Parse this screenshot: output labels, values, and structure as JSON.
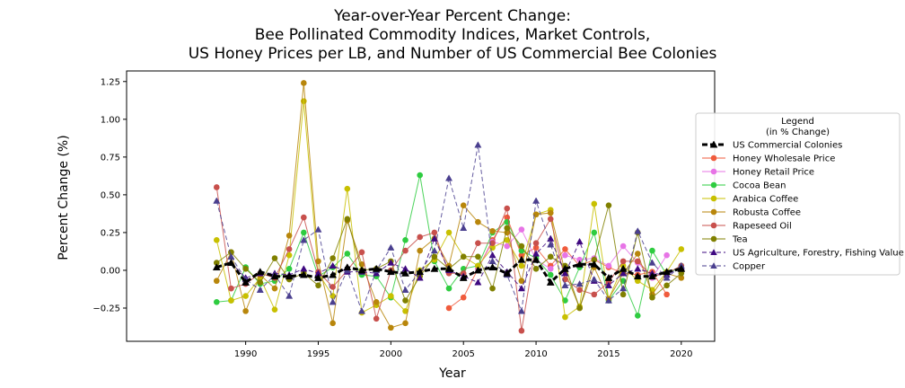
{
  "chart_data": {
    "type": "line",
    "title": [
      "Year-over-Year Percent Change:",
      "Bee Pollinated Commodity Indices, Market Controls,",
      "US Honey Prices per LB, and Number of US Commercial Bee Colonies"
    ],
    "xlabel": "Year",
    "ylabel": "Percent Change (%)",
    "xlim": [
      1981.8,
      2022.3
    ],
    "ylim": [
      -0.47,
      1.32
    ],
    "xticks": [
      1990,
      1995,
      2000,
      2005,
      2010,
      2015,
      2020
    ],
    "yticks": [
      -0.25,
      0.0,
      0.25,
      0.5,
      0.75,
      1.0,
      1.25
    ],
    "ytick_labels": [
      "−0.25",
      "0.00",
      "0.25",
      "0.50",
      "0.75",
      "1.00",
      "1.25"
    ],
    "legend": {
      "title_lines": [
        "Legend",
        "(in % Change)"
      ],
      "placement": "right-outside"
    },
    "x": [
      1988,
      1989,
      1990,
      1991,
      1992,
      1993,
      1994,
      1995,
      1996,
      1997,
      1998,
      1999,
      2000,
      2001,
      2002,
      2003,
      2004,
      2005,
      2006,
      2007,
      2008,
      2009,
      2010,
      2011,
      2012,
      2013,
      2014,
      2015,
      2016,
      2017,
      2018,
      2019,
      2020
    ],
    "series": [
      {
        "name": "US Commercial Colonies",
        "color": "#000000",
        "dash": "6,3",
        "width": 3,
        "marker": "triangle",
        "values": [
          0.02,
          0.05,
          -0.08,
          -0.01,
          -0.04,
          -0.04,
          -0.03,
          -0.05,
          -0.03,
          0.02,
          0.0,
          0.01,
          -0.01,
          -0.02,
          -0.01,
          0.01,
          0.01,
          -0.05,
          0.0,
          0.02,
          -0.02,
          0.07,
          0.07,
          -0.08,
          0.01,
          0.04,
          0.04,
          -0.05,
          0.01,
          -0.04,
          -0.04,
          -0.01,
          0.01
        ]
      },
      {
        "name": "Honey Wholesale Price",
        "color": "#f05b3c",
        "dash": "",
        "width": 1,
        "marker": "circle",
        "values": [
          null,
          null,
          null,
          null,
          null,
          null,
          null,
          null,
          null,
          null,
          null,
          null,
          null,
          null,
          null,
          null,
          -0.25,
          -0.18,
          0.01,
          0.2,
          0.35,
          0.1,
          0.15,
          0.03,
          0.14,
          0.03,
          0.07,
          0.02,
          -0.02,
          -0.03,
          -0.01,
          -0.16,
          null
        ]
      },
      {
        "name": "Honey Retail Price",
        "color": "#e774e6",
        "dash": "",
        "width": 1,
        "marker": "circle",
        "values": [
          null,
          null,
          null,
          null,
          null,
          null,
          null,
          null,
          null,
          null,
          null,
          null,
          null,
          null,
          null,
          null,
          null,
          null,
          0.01,
          0.19,
          0.16,
          0.27,
          0.07,
          0.01,
          0.1,
          0.07,
          0.08,
          0.03,
          0.16,
          0.05,
          -0.05,
          0.1,
          null
        ]
      },
      {
        "name": "Cocoa Bean",
        "color": "#2ecc40",
        "dash": "",
        "width": 1,
        "marker": "circle",
        "values": [
          -0.21,
          -0.2,
          0.02,
          -0.09,
          -0.07,
          0.01,
          0.25,
          -0.04,
          0.02,
          0.11,
          -0.03,
          -0.04,
          -0.18,
          0.2,
          0.63,
          0.06,
          -0.12,
          0.01,
          0.03,
          0.25,
          0.32,
          0.13,
          0.08,
          -0.03,
          -0.2,
          0.02,
          0.25,
          -0.2,
          -0.07,
          -0.3,
          0.13,
          -0.03,
          0.03
        ]
      },
      {
        "name": "Arabica Coffee",
        "color": "#c8c000",
        "dash": "",
        "width": 1,
        "marker": "circle",
        "values": [
          0.2,
          -0.2,
          -0.17,
          -0.05,
          -0.26,
          0.1,
          1.12,
          -0.02,
          -0.17,
          0.54,
          -0.28,
          -0.23,
          -0.17,
          -0.27,
          0.0,
          0.07,
          0.25,
          0.09,
          0.03,
          0.15,
          0.2,
          0.03,
          0.37,
          0.4,
          -0.31,
          -0.24,
          0.44,
          -0.19,
          0.03,
          -0.07,
          -0.13,
          -0.01,
          0.14
        ]
      },
      {
        "name": "Robusta Coffee",
        "color": "#b8860b",
        "dash": "",
        "width": 1,
        "marker": "circle",
        "values": [
          -0.07,
          0.12,
          -0.27,
          -0.03,
          -0.12,
          0.23,
          1.24,
          0.06,
          -0.35,
          0.33,
          0.04,
          -0.21,
          -0.38,
          -0.35,
          0.13,
          0.21,
          0.03,
          0.43,
          0.32,
          0.26,
          0.25,
          -0.07,
          0.37,
          0.38,
          -0.01,
          -0.25,
          0.02,
          -0.19,
          -0.02,
          0.11,
          -0.16,
          -0.02,
          -0.05
        ]
      },
      {
        "name": "Rapeseed Oil",
        "color": "#c8504c",
        "dash": "",
        "width": 1,
        "marker": "circle",
        "values": [
          0.55,
          -0.12,
          -0.09,
          -0.02,
          -0.05,
          0.14,
          0.35,
          -0.01,
          -0.11,
          0.0,
          0.12,
          -0.32,
          0.0,
          0.13,
          0.22,
          0.25,
          -0.02,
          -0.02,
          0.18,
          0.18,
          0.41,
          -0.4,
          0.18,
          0.34,
          -0.06,
          -0.13,
          -0.16,
          -0.08,
          0.06,
          0.06,
          -0.04,
          -0.02,
          0.03
        ]
      },
      {
        "name": "Tea",
        "color": "#808000",
        "dash": "",
        "width": 1,
        "marker": "circle",
        "values": [
          0.05,
          0.12,
          0.01,
          -0.08,
          0.08,
          -0.06,
          -0.02,
          -0.1,
          0.08,
          0.34,
          0.0,
          0.01,
          0.06,
          -0.2,
          -0.04,
          0.09,
          0.01,
          0.09,
          0.09,
          -0.12,
          0.28,
          0.16,
          0.01,
          0.09,
          0.03,
          -0.25,
          0.07,
          0.43,
          -0.16,
          0.25,
          -0.18,
          -0.1,
          -0.02
        ]
      },
      {
        "name": "US Agriculture, Forestry, Fishing Value",
        "color": "#3e0880",
        "dash": "5,3",
        "width": 1,
        "marker": "triangle",
        "values": [
          null,
          0.05,
          -0.05,
          -0.02,
          -0.02,
          -0.03,
          0.01,
          -0.02,
          0.03,
          -0.01,
          -0.01,
          -0.02,
          0.05,
          0.01,
          -0.05,
          0.21,
          0.0,
          -0.04,
          -0.08,
          0.1,
          -0.01,
          -0.12,
          0.11,
          0.21,
          -0.02,
          0.19,
          -0.07,
          -0.1,
          -0.02,
          0.01,
          -0.02,
          -0.03,
          0.02
        ]
      },
      {
        "name": "Copper",
        "color": "#4a3f8f",
        "dash": "5,3",
        "width": 1,
        "marker": "triangle",
        "values": [
          0.46,
          0.09,
          -0.06,
          -0.13,
          -0.03,
          -0.17,
          0.2,
          0.27,
          -0.21,
          0.0,
          -0.27,
          0.0,
          0.15,
          -0.13,
          -0.01,
          0.13,
          0.61,
          0.28,
          0.83,
          0.06,
          -0.03,
          -0.27,
          0.46,
          0.17,
          -0.1,
          -0.09,
          -0.06,
          -0.2,
          -0.12,
          0.26,
          0.05,
          -0.05,
          0.03
        ]
      }
    ]
  }
}
